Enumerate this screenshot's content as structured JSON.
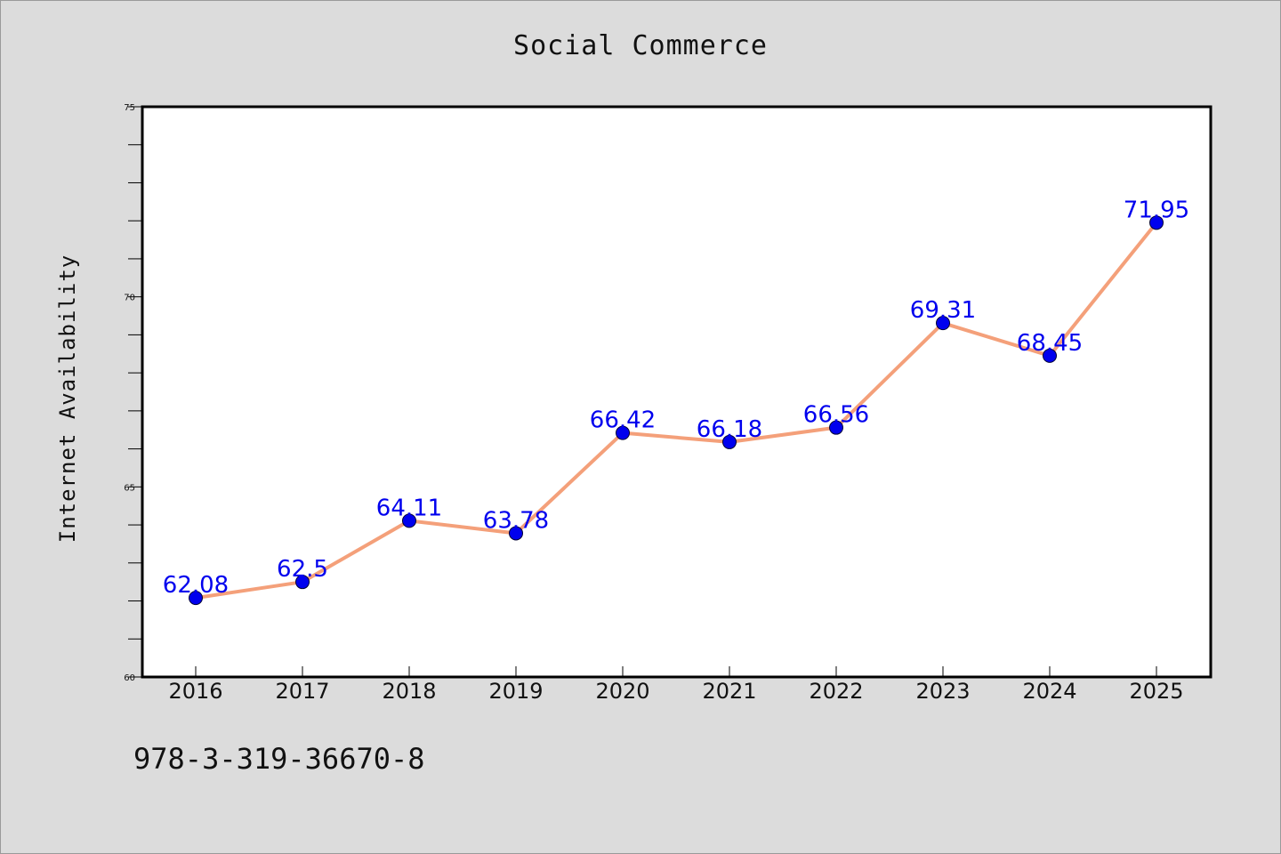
{
  "chart_data": {
    "type": "line",
    "title": "Social Commerce",
    "xlabel": "",
    "ylabel": "Internet Availability",
    "categories": [
      "2016",
      "2017",
      "2018",
      "2019",
      "2020",
      "2021",
      "2022",
      "2023",
      "2024",
      "2025"
    ],
    "series": [
      {
        "values": [
          62.08,
          62.5,
          64.11,
          63.78,
          66.42,
          66.18,
          66.56,
          69.31,
          68.45,
          71.95
        ],
        "data_labels": [
          "62.08",
          "62.5",
          "64.11",
          "63.78",
          "66.42",
          "66.18",
          "66.56",
          "69.31",
          "68.45",
          "71.95"
        ]
      }
    ],
    "ylim": [
      60,
      75
    ],
    "yticks": [
      60,
      65,
      70,
      75
    ],
    "ytick_labels": [
      "60",
      "65",
      "70",
      "75"
    ],
    "grid": false,
    "legend": "none",
    "colors": {
      "line": "#f4a07a",
      "marker": "#0000ee",
      "data_label": "#0000ee",
      "plot_background": "#ffffff",
      "page_background": "#dcdcdc"
    }
  },
  "footer": {
    "isbn": "978-3-319-36670-8"
  }
}
